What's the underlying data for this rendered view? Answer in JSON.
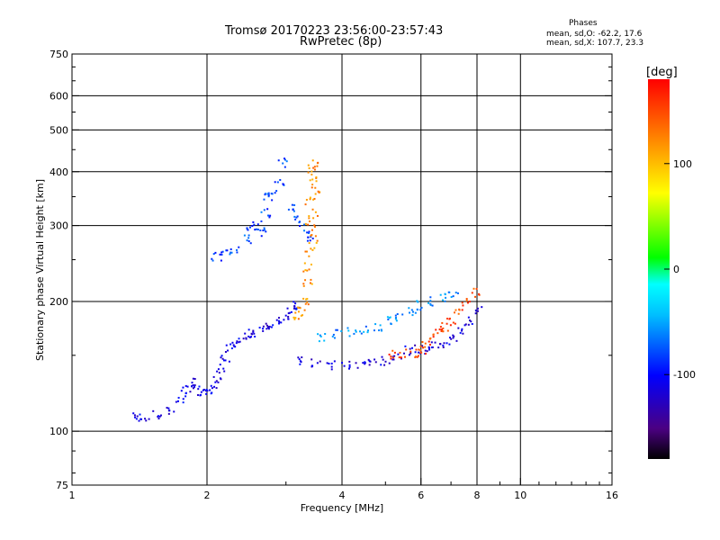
{
  "header": {
    "title_line1": "Tromsø 20170223 23:56:00-23:57:43",
    "title_line2": "RwPretec (8p)"
  },
  "phases": {
    "heading": "Phases",
    "o_line": "mean, sd,O: -62.2, 17.6",
    "x_line": "mean, sd,X: 107.7, 23.3"
  },
  "chart_data": {
    "type": "scatter",
    "title": "Tromsø 20170223 23:56:00-23:57:43",
    "subtitle": "RwPretec (8p)",
    "xlabel": "Frequency [MHz]",
    "ylabel": "Stationary phase Virtual Height [km]",
    "x_scale": "log",
    "y_scale": "log",
    "xlim": [
      1,
      16
    ],
    "ylim": [
      75,
      750
    ],
    "x_ticks": [
      1,
      2,
      4,
      6,
      8,
      10,
      16
    ],
    "y_ticks": [
      75,
      100,
      200,
      300,
      400,
      500,
      600,
      750
    ],
    "grid": true,
    "colorbar": {
      "label": "[deg]",
      "range": [
        -180,
        180
      ],
      "ticks": [
        100,
        0,
        -100
      ],
      "colors": [
        "#000000",
        "#5a0080",
        "#0000ff",
        "#00bfff",
        "#00ffff",
        "#00ff00",
        "#ffff00",
        "#ff8000",
        "#ff0000"
      ]
    },
    "series": [
      {
        "trace": "lower-branch",
        "points": [
          [
            1.4,
            108
          ],
          [
            1.45,
            107
          ],
          [
            1.55,
            109
          ],
          [
            1.65,
            112
          ],
          [
            1.75,
            118
          ],
          [
            1.8,
            125
          ],
          [
            1.85,
            130
          ],
          [
            1.9,
            128
          ],
          [
            1.95,
            124
          ],
          [
            2.0,
            122
          ],
          [
            2.05,
            125
          ],
          [
            2.1,
            132
          ],
          [
            2.15,
            140
          ],
          [
            2.2,
            148
          ],
          [
            2.25,
            155
          ],
          [
            2.3,
            160
          ],
          [
            2.4,
            165
          ],
          [
            2.5,
            168
          ],
          [
            2.6,
            170
          ],
          [
            2.7,
            174
          ],
          [
            2.8,
            176
          ],
          [
            2.9,
            180
          ],
          [
            3.0,
            186
          ],
          [
            3.1,
            190
          ],
          [
            3.2,
            195
          ]
        ],
        "phase": -110
      },
      {
        "trace": "upper-scatter",
        "points": [
          [
            2.1,
            255
          ],
          [
            2.2,
            260
          ],
          [
            2.3,
            262
          ],
          [
            2.45,
            280
          ],
          [
            2.5,
            298
          ],
          [
            2.6,
            300
          ],
          [
            2.65,
            290
          ],
          [
            2.7,
            320
          ],
          [
            2.75,
            350
          ],
          [
            2.8,
            360
          ],
          [
            2.9,
            380
          ],
          [
            2.95,
            420
          ],
          [
            3.1,
            330
          ],
          [
            3.2,
            310
          ],
          [
            3.3,
            295
          ],
          [
            3.4,
            280
          ]
        ],
        "phase": -80
      },
      {
        "trace": "yellow-column",
        "points": [
          [
            3.45,
            420
          ],
          [
            3.45,
            400
          ],
          [
            3.48,
            380
          ],
          [
            3.5,
            360
          ],
          [
            3.4,
            340
          ],
          [
            3.45,
            320
          ],
          [
            3.4,
            300
          ],
          [
            3.45,
            280
          ],
          [
            3.4,
            260
          ],
          [
            3.35,
            240
          ],
          [
            3.35,
            220
          ],
          [
            3.3,
            200
          ],
          [
            3.25,
            190
          ],
          [
            3.2,
            185
          ]
        ],
        "phase": 120
      },
      {
        "trace": "F-trace",
        "points": [
          [
            3.2,
            145
          ],
          [
            3.5,
            144
          ],
          [
            3.8,
            142
          ],
          [
            4.1,
            142
          ],
          [
            4.4,
            143
          ],
          [
            4.7,
            144
          ],
          [
            5.0,
            146
          ],
          [
            5.3,
            150
          ],
          [
            5.6,
            154
          ],
          [
            5.9,
            155
          ],
          [
            6.2,
            155
          ],
          [
            6.5,
            157
          ],
          [
            6.8,
            160
          ],
          [
            7.1,
            165
          ],
          [
            7.4,
            172
          ],
          [
            7.7,
            180
          ],
          [
            8.0,
            190
          ]
        ],
        "phase": -115
      },
      {
        "trace": "orange-trace",
        "points": [
          [
            5.2,
            150
          ],
          [
            5.5,
            151
          ],
          [
            5.8,
            152
          ],
          [
            6.0,
            155
          ],
          [
            6.2,
            160
          ],
          [
            6.4,
            165
          ],
          [
            6.6,
            170
          ],
          [
            6.8,
            175
          ],
          [
            7.0,
            180
          ],
          [
            7.3,
            190
          ],
          [
            7.6,
            200
          ],
          [
            7.9,
            210
          ]
        ],
        "phase": 150
      },
      {
        "trace": "cyan-trace",
        "points": [
          [
            3.6,
            165
          ],
          [
            3.9,
            168
          ],
          [
            4.2,
            170
          ],
          [
            4.5,
            172
          ],
          [
            4.8,
            175
          ],
          [
            5.1,
            180
          ],
          [
            5.4,
            185
          ],
          [
            5.7,
            190
          ],
          [
            6.0,
            196
          ],
          [
            6.3,
            200
          ],
          [
            6.7,
            205
          ],
          [
            7.1,
            210
          ]
        ],
        "phase": -60
      }
    ]
  }
}
